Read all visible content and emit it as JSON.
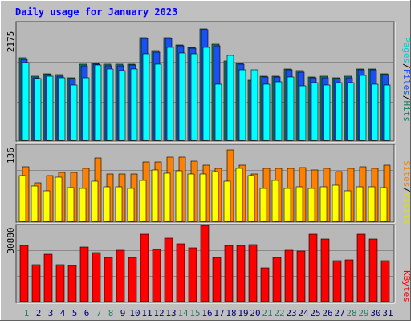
{
  "chart_data": [
    {
      "type": "bar",
      "title": "Daily usage for January 2023",
      "ymax_label": "2175",
      "y_axis_labels": [
        "Pages",
        "Files",
        "Hits"
      ],
      "categories": [
        "1",
        "2",
        "3",
        "4",
        "5",
        "6",
        "7",
        "8",
        "9",
        "10",
        "11",
        "12",
        "13",
        "14",
        "15",
        "16",
        "17",
        "18",
        "19",
        "20",
        "21",
        "22",
        "23",
        "24",
        "25",
        "26",
        "27",
        "28",
        "29",
        "30",
        "31"
      ],
      "weekend_days": [
        "1",
        "7",
        "8",
        "14",
        "15",
        "21",
        "22",
        "28",
        "29"
      ],
      "ylim": [
        0,
        2175
      ],
      "series": [
        {
          "name": "Hits",
          "color": "#1e8066",
          "values": [
            1520,
            1180,
            1230,
            1210,
            1160,
            1400,
            1420,
            1400,
            1400,
            1410,
            1900,
            1650,
            1900,
            1760,
            1720,
            2060,
            1770,
            1460,
            1420,
            1110,
            1190,
            1190,
            1320,
            1280,
            1170,
            1180,
            1160,
            1180,
            1320,
            1320,
            1230
          ]
        },
        {
          "name": "Files",
          "color": "#1a4ff0",
          "values": [
            1500,
            1160,
            1210,
            1190,
            1140,
            1380,
            1410,
            1380,
            1380,
            1390,
            1880,
            1630,
            1880,
            1740,
            1700,
            2040,
            1750,
            1440,
            1410,
            1090,
            1170,
            1170,
            1300,
            1260,
            1150,
            1160,
            1140,
            1160,
            1300,
            1300,
            1210
          ]
        },
        {
          "name": "Pages",
          "color": "#00ffff",
          "values": [
            1440,
            1140,
            1180,
            1160,
            1020,
            1160,
            1390,
            1310,
            1290,
            1310,
            1600,
            1400,
            1720,
            1620,
            1600,
            1720,
            1030,
            1570,
            1300,
            1300,
            1030,
            1080,
            1170,
            1000,
            1060,
            1020,
            1060,
            1060,
            1200,
            1030,
            1020
          ]
        }
      ]
    },
    {
      "type": "bar",
      "ymax_label": "136",
      "y_axis_labels": [
        "Sites",
        "Visits"
      ],
      "categories": [
        "1",
        "2",
        "3",
        "4",
        "5",
        "6",
        "7",
        "8",
        "9",
        "10",
        "11",
        "12",
        "13",
        "14",
        "15",
        "16",
        "17",
        "18",
        "19",
        "20",
        "21",
        "22",
        "23",
        "24",
        "25",
        "26",
        "27",
        "28",
        "29",
        "30",
        "31"
      ],
      "ylim": [
        0,
        136
      ],
      "series": [
        {
          "name": "Visits",
          "color": "#ff8000",
          "values": [
            98,
            69,
            82,
            88,
            88,
            95,
            113,
            84,
            84,
            84,
            106,
            106,
            115,
            114,
            108,
            100,
            94,
            128,
            100,
            85,
            95,
            94,
            95,
            96,
            92,
            95,
            89,
            95,
            98,
            95,
            100
          ]
        },
        {
          "name": "Sites",
          "color": "#ffff00",
          "values": [
            82,
            63,
            55,
            79,
            60,
            58,
            71,
            62,
            62,
            58,
            73,
            92,
            86,
            90,
            84,
            85,
            89,
            71,
            95,
            82,
            59,
            73,
            58,
            62,
            58,
            62,
            64,
            54,
            61,
            62,
            60
          ]
        }
      ]
    },
    {
      "type": "bar",
      "ymax_label": "30880",
      "y_axis_labels": [
        "KBytes"
      ],
      "categories": [
        "1",
        "2",
        "3",
        "4",
        "5",
        "6",
        "7",
        "8",
        "9",
        "10",
        "11",
        "12",
        "13",
        "14",
        "15",
        "16",
        "17",
        "18",
        "19",
        "20",
        "21",
        "22",
        "23",
        "24",
        "25",
        "26",
        "27",
        "28",
        "29",
        "30",
        "31"
      ],
      "ylim": [
        0,
        30880
      ],
      "series": [
        {
          "name": "KBytes",
          "color": "#ff0000",
          "values": [
            22600,
            14900,
            19100,
            14900,
            14700,
            22200,
            19700,
            17800,
            20700,
            18000,
            27400,
            21000,
            25800,
            23400,
            21700,
            30900,
            17900,
            22700,
            22700,
            23000,
            13800,
            17900,
            20900,
            20400,
            27200,
            25200,
            16700,
            16900,
            27400,
            25300,
            16700
          ]
        }
      ]
    }
  ]
}
